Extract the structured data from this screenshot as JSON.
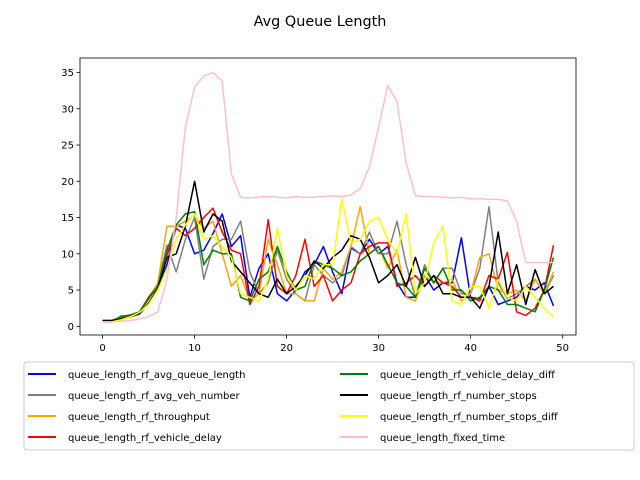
{
  "chart_data": {
    "type": "line",
    "title": "Avg Queue Length",
    "xlabel": "",
    "ylabel": "",
    "xlim": [
      -2.45,
      51.45
    ],
    "ylim": [
      -1.2,
      37.0
    ],
    "xticks": [
      0,
      10,
      20,
      30,
      40,
      50
    ],
    "yticks": [
      0,
      5,
      10,
      15,
      20,
      25,
      30,
      35
    ],
    "grid": false,
    "legend_placement": "below plot, two columns",
    "x": [
      0,
      1,
      2,
      3,
      4,
      5,
      6,
      7,
      8,
      9,
      10,
      11,
      12,
      13,
      14,
      15,
      16,
      17,
      18,
      19,
      20,
      21,
      22,
      23,
      24,
      25,
      26,
      27,
      28,
      29,
      30,
      31,
      32,
      33,
      34,
      35,
      36,
      37,
      38,
      39,
      40,
      41,
      42,
      43,
      44,
      45,
      46,
      47,
      48,
      49
    ],
    "series": [
      {
        "name": "queue_length_rf_avg_queue_length",
        "color": "#0000ff",
        "values": [
          0.7,
          0.8,
          1.2,
          1.5,
          1.9,
          3.8,
          5.5,
          8.5,
          14.0,
          13.5,
          10.0,
          10.5,
          12.8,
          15.5,
          11.0,
          12.5,
          4.0,
          8.0,
          10.0,
          4.5,
          3.5,
          5.0,
          7.5,
          8.5,
          11.0,
          7.5,
          4.5,
          10.8,
          10.0,
          12.0,
          10.0,
          11.0,
          6.0,
          4.0,
          4.0,
          7.0,
          5.0,
          6.0,
          6.0,
          12.2,
          4.0,
          3.8,
          5.5,
          3.0,
          3.5,
          4.0,
          5.5,
          5.0,
          6.0,
          2.8
        ]
      },
      {
        "name": "queue_length_rf_avg_veh_number",
        "color": "#808080",
        "values": [
          0.8,
          0.8,
          1.3,
          1.6,
          2.0,
          4.0,
          5.8,
          11.2,
          7.5,
          12.0,
          15.0,
          6.5,
          11.0,
          12.0,
          12.0,
          14.5,
          7.5,
          4.5,
          6.0,
          10.5,
          6.5,
          4.5,
          3.5,
          8.5,
          7.0,
          6.0,
          7.0,
          11.0,
          10.0,
          13.0,
          10.0,
          10.0,
          14.5,
          8.5,
          4.0,
          8.5,
          6.0,
          8.0,
          8.0,
          4.5,
          4.5,
          8.0,
          16.5,
          6.0,
          3.8,
          4.5,
          5.5,
          6.5,
          4.5,
          7.0
        ]
      },
      {
        "name": "queue_length_rf_throughput",
        "color": "#ffa500",
        "values": [
          0.6,
          0.6,
          0.9,
          1.3,
          1.8,
          3.8,
          6.0,
          13.8,
          13.8,
          14.5,
          15.3,
          13.5,
          14.5,
          10.0,
          5.5,
          7.0,
          3.5,
          4.5,
          12.0,
          8.5,
          4.5,
          4.5,
          3.5,
          3.5,
          8.0,
          6.5,
          7.5,
          11.0,
          16.5,
          10.0,
          11.0,
          8.0,
          10.5,
          4.0,
          3.5,
          7.0,
          6.0,
          6.0,
          6.5,
          3.5,
          4.5,
          9.5,
          10.0,
          5.0,
          4.5,
          5.0,
          3.5,
          6.5,
          4.5,
          7.5
        ]
      },
      {
        "name": "queue_length_rf_vehicle_delay",
        "color": "#ff0000",
        "values": [
          0.7,
          0.7,
          1.0,
          1.4,
          1.9,
          4.0,
          5.5,
          9.8,
          13.5,
          12.5,
          13.5,
          15.0,
          16.3,
          13.0,
          10.5,
          10.0,
          3.0,
          5.5,
          14.7,
          5.5,
          4.5,
          7.0,
          12.0,
          5.5,
          7.0,
          3.5,
          5.0,
          6.0,
          10.0,
          11.0,
          11.5,
          11.5,
          5.5,
          6.0,
          7.0,
          5.5,
          7.0,
          6.0,
          5.5,
          4.0,
          4.0,
          3.5,
          7.0,
          6.5,
          10.2,
          2.0,
          1.5,
          2.5,
          5.0,
          11.2
        ]
      },
      {
        "name": "queue_length_rf_vehicle_delay_diff",
        "color": "#008000",
        "values": [
          0.6,
          0.6,
          1.4,
          1.5,
          1.9,
          3.8,
          5.5,
          10.5,
          14.0,
          15.5,
          15.8,
          8.5,
          10.5,
          10.0,
          10.0,
          4.0,
          3.5,
          6.5,
          7.5,
          11.0,
          7.5,
          5.0,
          5.5,
          9.0,
          8.5,
          8.0,
          7.0,
          7.5,
          9.0,
          10.0,
          11.0,
          8.5,
          6.0,
          5.5,
          4.0,
          8.0,
          6.0,
          8.0,
          5.0,
          5.0,
          3.5,
          4.0,
          5.5,
          5.0,
          3.0,
          3.0,
          2.5,
          2.0,
          5.0,
          9.5
        ]
      },
      {
        "name": "queue_length_rf_number_stops",
        "color": "#000000",
        "values": [
          0.8,
          0.8,
          1.0,
          1.3,
          1.7,
          3.2,
          5.2,
          9.5,
          10.0,
          13.8,
          20.0,
          13.0,
          15.5,
          14.5,
          9.0,
          7.5,
          6.0,
          4.5,
          4.0,
          6.5,
          4.5,
          5.5,
          7.0,
          9.0,
          8.0,
          9.5,
          10.5,
          12.5,
          12.0,
          9.5,
          6.0,
          7.0,
          8.5,
          5.5,
          9.5,
          5.5,
          7.0,
          4.5,
          4.5,
          4.0,
          4.0,
          2.5,
          5.5,
          13.0,
          4.5,
          8.5,
          3.0,
          7.8,
          4.5,
          5.5
        ]
      },
      {
        "name": "queue_length_rf_number_stops_diff",
        "color": "#ffff00",
        "values": [
          0.6,
          0.6,
          0.9,
          1.3,
          1.9,
          3.0,
          5.0,
          7.8,
          12.0,
          14.0,
          15.5,
          12.0,
          12.5,
          11.0,
          9.5,
          4.5,
          4.0,
          3.5,
          6.5,
          13.5,
          7.0,
          5.0,
          7.0,
          6.5,
          8.5,
          8.5,
          17.5,
          11.5,
          12.0,
          14.5,
          15.0,
          12.0,
          10.0,
          15.5,
          4.5,
          6.0,
          11.5,
          13.8,
          3.5,
          3.0,
          5.5,
          5.5,
          2.5,
          6.5,
          4.0,
          3.5,
          5.5,
          4.0,
          2.5,
          1.3
        ]
      },
      {
        "name": "queue_length_fixed_time",
        "color": "#ffc0cb",
        "values": [
          0.5,
          0.6,
          0.7,
          0.8,
          1.0,
          1.3,
          2.0,
          6.5,
          15.0,
          27.5,
          33.0,
          34.5,
          35.0,
          33.8,
          21.0,
          17.8,
          17.7,
          17.8,
          17.9,
          17.8,
          17.7,
          17.9,
          17.8,
          17.8,
          17.9,
          18.0,
          17.9,
          18.1,
          19.0,
          22.0,
          27.5,
          33.2,
          31.0,
          22.5,
          18.0,
          17.9,
          17.9,
          17.8,
          17.7,
          17.8,
          17.6,
          17.6,
          17.5,
          17.5,
          17.3,
          14.5,
          8.8,
          8.8,
          8.8,
          8.8
        ]
      }
    ]
  }
}
